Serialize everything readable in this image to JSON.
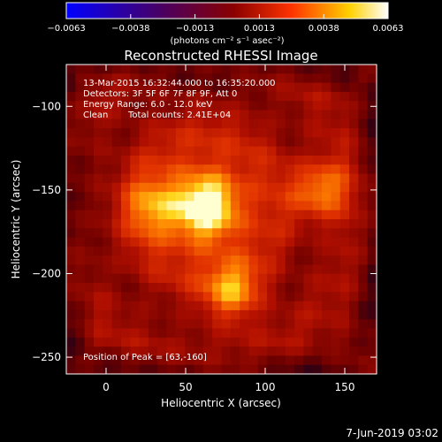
{
  "colors": {
    "background": "#000000",
    "text": "#ffffff",
    "colormap": [
      "#0000ff",
      "#4b0060",
      "#8a0000",
      "#ff3300",
      "#ffd000",
      "#ffffff"
    ]
  },
  "colorbar": {
    "ticks": [
      "-0.0063",
      "-0.0038",
      "-0.0013",
      "0.0013",
      "0.0038",
      "0.0063"
    ],
    "unit_label": "(photons cm⁻² s⁻¹ asec⁻²)"
  },
  "chart_data": {
    "type": "heatmap",
    "title": "Reconstructed RHESSI Image",
    "xlabel": "Heliocentric X (arcsec)",
    "ylabel": "Heliocentric Y (arcsec)",
    "xlim": [
      -25,
      170
    ],
    "ylim": [
      -260,
      -75
    ],
    "xticks": [
      0,
      50,
      100,
      150
    ],
    "yticks": [
      -100,
      -150,
      -200,
      -250
    ],
    "info": {
      "line1": "13-Mar-2015 16:32:44.000 to 16:35:20.000",
      "line2": "Detectors: 3F 5F 6F 7F 8F 9F, Att 0",
      "line3": "Energy Range: 6.0 - 12.0 keV",
      "line4_method": "Clean",
      "line4_counts": "Total counts: 2.41E+04"
    },
    "peak_label": "Position of Peak = [63,-160]",
    "peak": [
      63,
      -160
    ],
    "sources": [
      {
        "x": 63,
        "y": -160,
        "level": 1.0
      },
      {
        "x": 135,
        "y": -150,
        "level": 0.7
      },
      {
        "x": 80,
        "y": -212,
        "level": 0.65
      },
      {
        "x": 30,
        "y": -160,
        "level": 0.5
      }
    ]
  },
  "footer": {
    "date": "7-Jun-2019 03:02"
  }
}
